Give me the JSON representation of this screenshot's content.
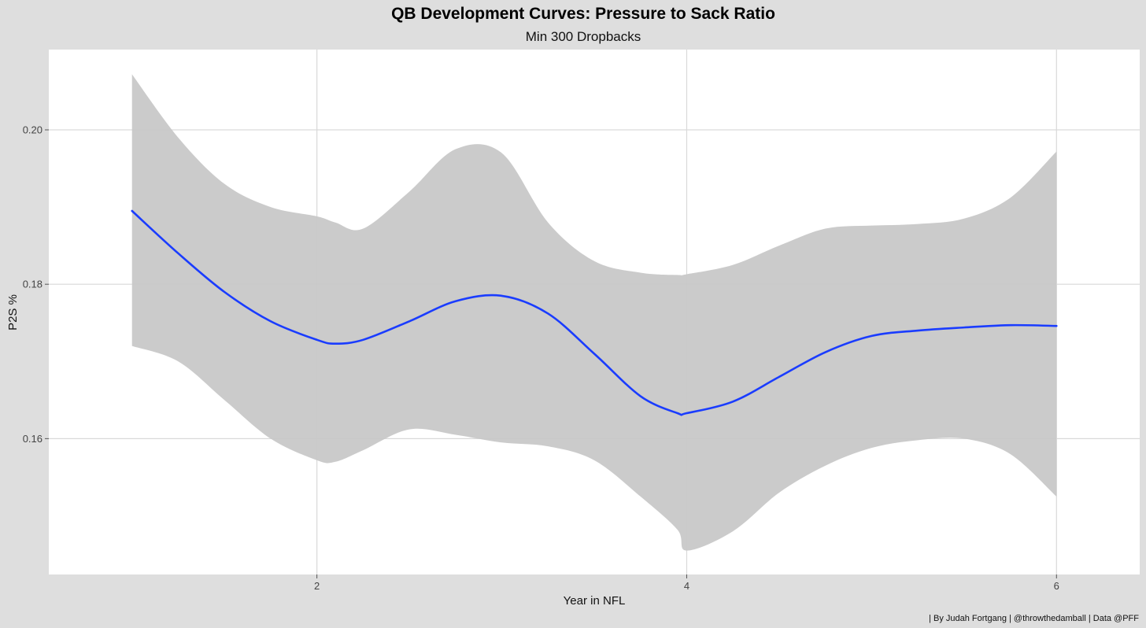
{
  "colors": {
    "outer_background": "#dedede",
    "panel_background": "#ffffff",
    "grid": "#d9d9d9",
    "line": "#1a3cff",
    "ribbon": "#c8c8c8"
  },
  "chart_data": {
    "type": "line",
    "title": "QB Development Curves: Pressure to Sack Ratio",
    "subtitle": "Min 300 Dropbacks",
    "xlabel": "Year in NFL",
    "ylabel": "P2S %",
    "caption": "| By Judah Fortgang | @throwthedamball | Data @PFF",
    "xlim": [
      0.55,
      6.45
    ],
    "ylim": [
      0.1424,
      0.2104
    ],
    "x_ticks": [
      2,
      4,
      6
    ],
    "x_tick_labels": [
      "2",
      "4",
      "6"
    ],
    "y_ticks": [
      0.16,
      0.18,
      0.2
    ],
    "y_tick_labels": [
      "0.16",
      "0.18",
      "0.20"
    ],
    "grid": true,
    "legend": "none",
    "series": [
      {
        "x": [
          1.0,
          1.25,
          1.5,
          1.75,
          2.0,
          2.1,
          2.25,
          2.5,
          2.75,
          3.0,
          3.25,
          3.5,
          3.75,
          3.95,
          4.0,
          4.25,
          4.5,
          4.75,
          5.0,
          5.25,
          5.5,
          5.75,
          6.0
        ],
        "y": [
          0.1895,
          0.184,
          0.179,
          0.1752,
          0.1728,
          0.1723,
          0.1728,
          0.1752,
          0.1778,
          0.1785,
          0.1762,
          0.171,
          0.1655,
          0.1633,
          0.1633,
          0.1648,
          0.168,
          0.1712,
          0.1733,
          0.174,
          0.1744,
          0.1747,
          0.1746
        ],
        "lower": [
          0.172,
          0.17,
          0.165,
          0.16,
          0.1572,
          0.157,
          0.1585,
          0.1612,
          0.1605,
          0.1595,
          0.159,
          0.1572,
          0.1525,
          0.1482,
          0.1455,
          0.148,
          0.153,
          0.1565,
          0.1588,
          0.1598,
          0.16,
          0.158,
          0.1525
        ],
        "upper": [
          0.2072,
          0.199,
          0.193,
          0.19,
          0.1888,
          0.188,
          0.1872,
          0.192,
          0.1975,
          0.197,
          0.188,
          0.183,
          0.1815,
          0.1812,
          0.1813,
          0.1825,
          0.185,
          0.1872,
          0.1876,
          0.1878,
          0.1885,
          0.1912,
          0.1972
        ]
      }
    ]
  }
}
